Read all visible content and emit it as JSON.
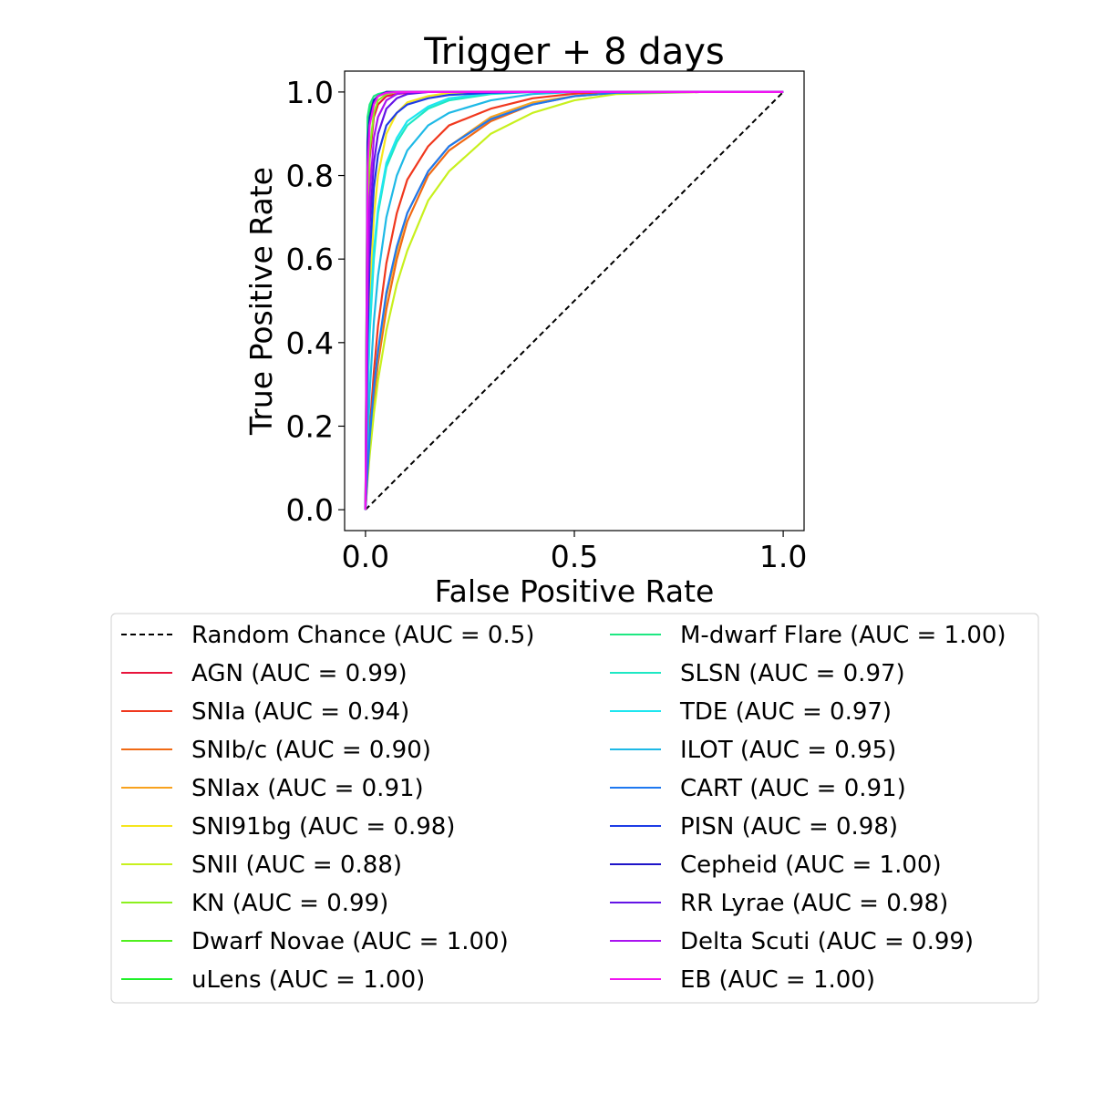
{
  "chart_data": {
    "type": "line",
    "title": "Trigger + 8 days",
    "xlabel": "False Positive Rate",
    "ylabel": "True Positive Rate",
    "xlim": [
      -0.05,
      1.05
    ],
    "ylim": [
      -0.05,
      1.05
    ],
    "xticks": [
      0.0,
      0.5,
      1.0
    ],
    "xtick_labels": [
      "0.0",
      "0.5",
      "1.0"
    ],
    "yticks": [
      0.0,
      0.2,
      0.4,
      0.6,
      0.8,
      1.0
    ],
    "ytick_labels": [
      "0.0",
      "0.2",
      "0.4",
      "0.6",
      "0.8",
      "1.0"
    ],
    "grid": false,
    "legend_position": "below plot, two columns",
    "reference_line": {
      "name": "Random Chance (AUC = 0.5)",
      "color": "#000000",
      "dashed": true,
      "x": [
        0,
        1
      ],
      "y": [
        0,
        1
      ]
    },
    "x": [
      0,
      0.005,
      0.01,
      0.02,
      0.03,
      0.05,
      0.075,
      0.1,
      0.15,
      0.2,
      0.3,
      0.4,
      0.5,
      0.6,
      0.8,
      1.0
    ],
    "series": [
      {
        "name": "AGN (AUC = 0.99)",
        "color": "#e8143c",
        "y": [
          0,
          0.62,
          0.84,
          0.94,
          0.97,
          0.99,
          0.995,
          0.998,
          1,
          1,
          1,
          1,
          1,
          1,
          1,
          1
        ]
      },
      {
        "name": "SNIa (AUC = 0.94)",
        "color": "#f0381e",
        "y": [
          0,
          0.1,
          0.19,
          0.33,
          0.44,
          0.59,
          0.71,
          0.79,
          0.87,
          0.92,
          0.96,
          0.985,
          0.996,
          1,
          1,
          1
        ]
      },
      {
        "name": "SNIb/c (AUC = 0.90)",
        "color": "#f06a14",
        "y": [
          0,
          0.08,
          0.15,
          0.26,
          0.35,
          0.48,
          0.6,
          0.69,
          0.8,
          0.86,
          0.93,
          0.97,
          0.99,
          0.998,
          1,
          1
        ]
      },
      {
        "name": "SNIax (AUC = 0.91)",
        "color": "#f8a21e",
        "y": [
          0,
          0.09,
          0.16,
          0.28,
          0.37,
          0.51,
          0.62,
          0.71,
          0.81,
          0.87,
          0.94,
          0.975,
          0.99,
          0.998,
          1,
          1
        ]
      },
      {
        "name": "SNI91bg (AUC = 0.98)",
        "color": "#f5e61e",
        "y": [
          0,
          0.3,
          0.5,
          0.7,
          0.8,
          0.9,
          0.95,
          0.975,
          0.99,
          0.998,
          1,
          1,
          1,
          1,
          1,
          1
        ]
      },
      {
        "name": "SNII (AUC = 0.88)",
        "color": "#c8f01e",
        "y": [
          0,
          0.07,
          0.13,
          0.23,
          0.31,
          0.43,
          0.54,
          0.62,
          0.74,
          0.81,
          0.9,
          0.95,
          0.98,
          0.995,
          1,
          1
        ]
      },
      {
        "name": "KN (AUC = 0.99)",
        "color": "#8cf01e",
        "y": [
          0,
          0.7,
          0.86,
          0.95,
          0.98,
          0.995,
          1,
          1,
          1,
          1,
          1,
          1,
          1,
          1,
          1,
          1
        ]
      },
      {
        "name": "Dwarf Novae (AUC = 1.00)",
        "color": "#50f01e",
        "y": [
          0,
          0.93,
          0.96,
          0.98,
          0.99,
          1,
          1,
          1,
          1,
          1,
          1,
          1,
          1,
          1,
          1,
          1
        ]
      },
      {
        "name": "uLens (AUC = 1.00)",
        "color": "#1ef028",
        "y": [
          0,
          0.9,
          0.95,
          0.98,
          0.99,
          1,
          1,
          1,
          1,
          1,
          1,
          1,
          1,
          1,
          1,
          1
        ]
      },
      {
        "name": "M-dwarf Flare (AUC = 1.00)",
        "color": "#1ee882",
        "y": [
          0,
          0.94,
          0.97,
          0.99,
          0.995,
          1,
          1,
          1,
          1,
          1,
          1,
          1,
          1,
          1,
          1,
          1
        ]
      },
      {
        "name": "SLSN (AUC = 0.97)",
        "color": "#1ee8c4",
        "y": [
          0,
          0.25,
          0.42,
          0.6,
          0.71,
          0.82,
          0.88,
          0.92,
          0.96,
          0.98,
          0.995,
          1,
          1,
          1,
          1,
          1
        ]
      },
      {
        "name": "TDE (AUC = 0.97)",
        "color": "#1ee6f0",
        "y": [
          0,
          0.27,
          0.44,
          0.62,
          0.72,
          0.83,
          0.89,
          0.93,
          0.965,
          0.985,
          0.997,
          1,
          1,
          1,
          1,
          1
        ]
      },
      {
        "name": "ILOT (AUC = 0.95)",
        "color": "#1eb9e6",
        "y": [
          0,
          0.15,
          0.28,
          0.45,
          0.56,
          0.7,
          0.8,
          0.86,
          0.92,
          0.95,
          0.98,
          0.995,
          1,
          1,
          1,
          1
        ]
      },
      {
        "name": "CART (AUC = 0.91)",
        "color": "#1e78f0",
        "y": [
          0,
          0.09,
          0.17,
          0.29,
          0.38,
          0.52,
          0.63,
          0.71,
          0.81,
          0.87,
          0.935,
          0.97,
          0.99,
          0.998,
          1,
          1
        ]
      },
      {
        "name": "PISN (AUC = 0.98)",
        "color": "#1e3ce6",
        "y": [
          0,
          0.4,
          0.6,
          0.77,
          0.85,
          0.92,
          0.95,
          0.97,
          0.985,
          0.993,
          0.998,
          1,
          1,
          1,
          1,
          1
        ]
      },
      {
        "name": "Cepheid (AUC = 1.00)",
        "color": "#1e14c8",
        "y": [
          0,
          0.88,
          0.94,
          0.98,
          0.99,
          1,
          1,
          1,
          1,
          1,
          1,
          1,
          1,
          1,
          1,
          1
        ]
      },
      {
        "name": "RR Lyrae (AUC = 0.98)",
        "color": "#6414e6",
        "y": [
          0,
          0.5,
          0.68,
          0.83,
          0.9,
          0.96,
          0.985,
          0.995,
          1,
          1,
          1,
          1,
          1,
          1,
          1,
          1
        ]
      },
      {
        "name": "Delta Scuti (AUC = 0.99)",
        "color": "#aa14f0",
        "y": [
          0,
          0.55,
          0.75,
          0.89,
          0.94,
          0.98,
          0.995,
          1,
          1,
          1,
          1,
          1,
          1,
          1,
          1,
          1
        ]
      },
      {
        "name": "EB (AUC = 1.00)",
        "color": "#f014f0",
        "y": [
          0,
          0.82,
          0.92,
          0.97,
          0.99,
          0.998,
          1,
          1,
          1,
          1,
          1,
          1,
          1,
          1,
          1,
          1
        ]
      }
    ]
  }
}
